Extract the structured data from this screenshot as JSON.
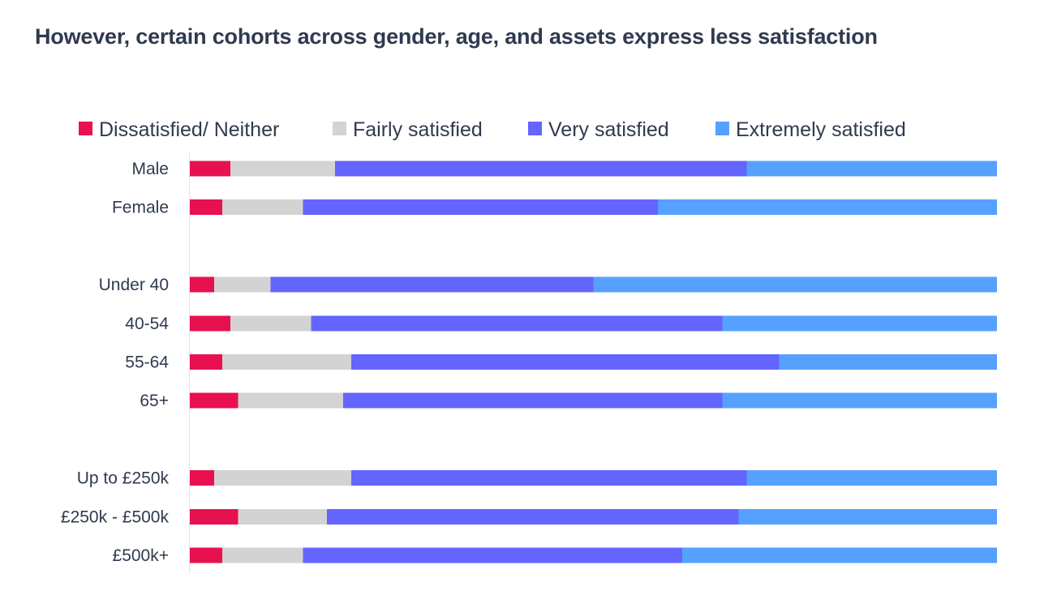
{
  "header": {
    "title": "However, certain cohorts across gender, age, and assets express less satisfaction"
  },
  "chart_data": {
    "type": "bar",
    "orientation": "horizontal",
    "stacked": true,
    "normalized_100": true,
    "title": "However, certain cohorts across gender, age, and assets express less satisfaction",
    "legend_position": "top",
    "grid": false,
    "xlim": [
      0,
      100
    ],
    "categories": [
      "Male",
      "Female",
      "Under 40",
      "40-54",
      "55-64",
      "65+",
      "Up to £250k",
      "£250k - £500k",
      "£500k+"
    ],
    "groups": [
      [
        "Male",
        "Female"
      ],
      [
        "Under 40",
        "40-54",
        "55-64",
        "65+"
      ],
      [
        "Up to £250k",
        "£250k - £500k",
        "£500k+"
      ]
    ],
    "series": [
      {
        "name": "Dissatisfied/ Neither",
        "color": "#E8114F",
        "values": [
          5,
          4,
          3,
          5,
          4,
          6,
          3,
          6,
          4
        ]
      },
      {
        "name": "Fairly satisfied",
        "color": "#D3D3D3",
        "values": [
          13,
          10,
          7,
          10,
          16,
          13,
          17,
          11,
          10
        ]
      },
      {
        "name": "Very satisfied",
        "color": "#6464FF",
        "values": [
          51,
          44,
          40,
          51,
          53,
          47,
          49,
          51,
          47
        ]
      },
      {
        "name": "Extremely satisfied",
        "color": "#56A1FF",
        "values": [
          31,
          42,
          50,
          34,
          27,
          34,
          31,
          32,
          39
        ]
      }
    ]
  }
}
